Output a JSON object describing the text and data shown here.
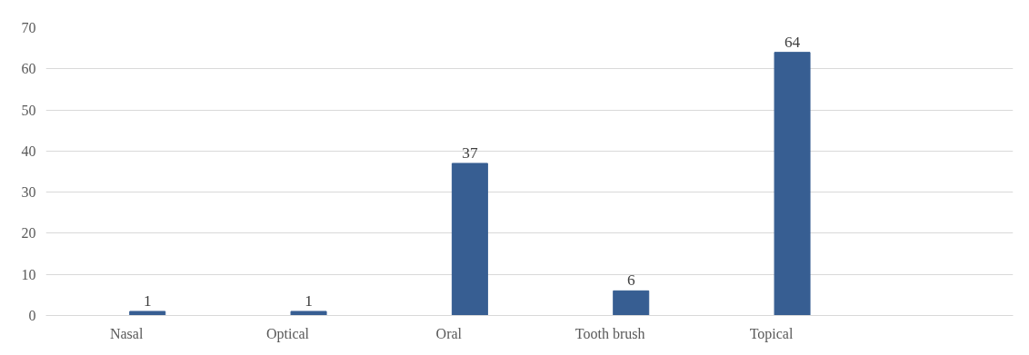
{
  "chart_data": {
    "type": "bar",
    "categories": [
      "Nasal",
      "Optical",
      "Oral",
      "Tooth brush",
      "Topical",
      null
    ],
    "values": [
      1,
      1,
      37,
      6,
      64,
      null
    ],
    "color": "#375e92",
    "data_labels": true,
    "ylim": [
      0,
      70
    ],
    "yticks": [
      0,
      10,
      20,
      30,
      40,
      50,
      60,
      70
    ],
    "grid": "y"
  }
}
